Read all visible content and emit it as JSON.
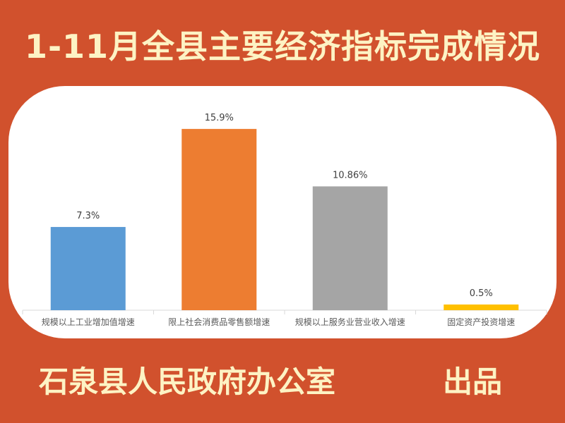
{
  "header": {
    "title": "1-11月全县主要经济指标完成情况"
  },
  "footer": {
    "publisher": "石泉县人民政府办公室",
    "product_label": "出品"
  },
  "colors": {
    "background": "#d1512d",
    "text": "#fdf3c4",
    "card": "#ffffff"
  },
  "chart_data": {
    "type": "bar",
    "title": "",
    "xlabel": "",
    "ylabel": "",
    "categories": [
      "规模以上工业增加值增速",
      "限上社会消费品零售额增速",
      "规模以上服务业营业收入增速",
      "固定资产投资增速"
    ],
    "values": [
      7.3,
      15.9,
      10.86,
      0.5
    ],
    "data_labels": [
      "7.3%",
      "15.9%",
      "10.86%",
      "0.5%"
    ],
    "bar_colors": [
      "#5b9bd5",
      "#ed7d31",
      "#a5a5a5",
      "#ffc000"
    ],
    "ylim": [
      0,
      17.5
    ],
    "grid": false,
    "legend": "none"
  }
}
